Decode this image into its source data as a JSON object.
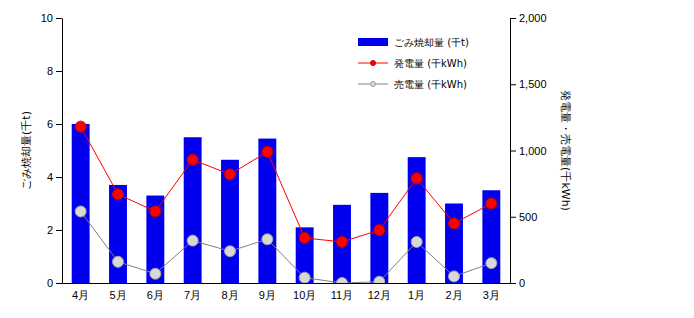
{
  "chart_data": {
    "type": "bar",
    "categories": [
      "4月",
      "5月",
      "6月",
      "7月",
      "8月",
      "9月",
      "10月",
      "11月",
      "12月",
      "1月",
      "2月",
      "3月"
    ],
    "y_label": "ごみ焼却量(千t)",
    "y2_label": "発電量・売電量(千kWh)",
    "ylim": [
      0,
      10
    ],
    "yticks": [
      0,
      2,
      4,
      6,
      8,
      10
    ],
    "y2lim": [
      0,
      2000
    ],
    "y2ticks": [
      0,
      500,
      {
        "value": 1000,
        "label": "1,000"
      },
      {
        "value": 1500,
        "label": "1,500"
      },
      {
        "value": 2000,
        "label": "2,000"
      }
    ],
    "grid": false,
    "legend": "upper right",
    "series": [
      {
        "name": "ごみ焼却量 (千t)",
        "type": "bar",
        "color": "#0000ee",
        "values": [
          6.0,
          3.7,
          3.3,
          5.5,
          4.65,
          5.45,
          2.1,
          2.95,
          3.4,
          4.75,
          3.0,
          3.5
        ]
      },
      {
        "name": "発電量 (千kWh)",
        "type": "line",
        "axis": "y2",
        "color": "#ff0000",
        "marker": "circle",
        "values": [
          1180,
          670,
          540,
          930,
          820,
          990,
          340,
          310,
          400,
          790,
          450,
          600
        ]
      },
      {
        "name": "売電量 (千kWh)",
        "type": "line",
        "axis": "y2",
        "color": "#808080",
        "marker": "circle",
        "values": [
          540,
          160,
          70,
          320,
          240,
          330,
          40,
          0,
          10,
          310,
          50,
          150
        ]
      }
    ]
  }
}
